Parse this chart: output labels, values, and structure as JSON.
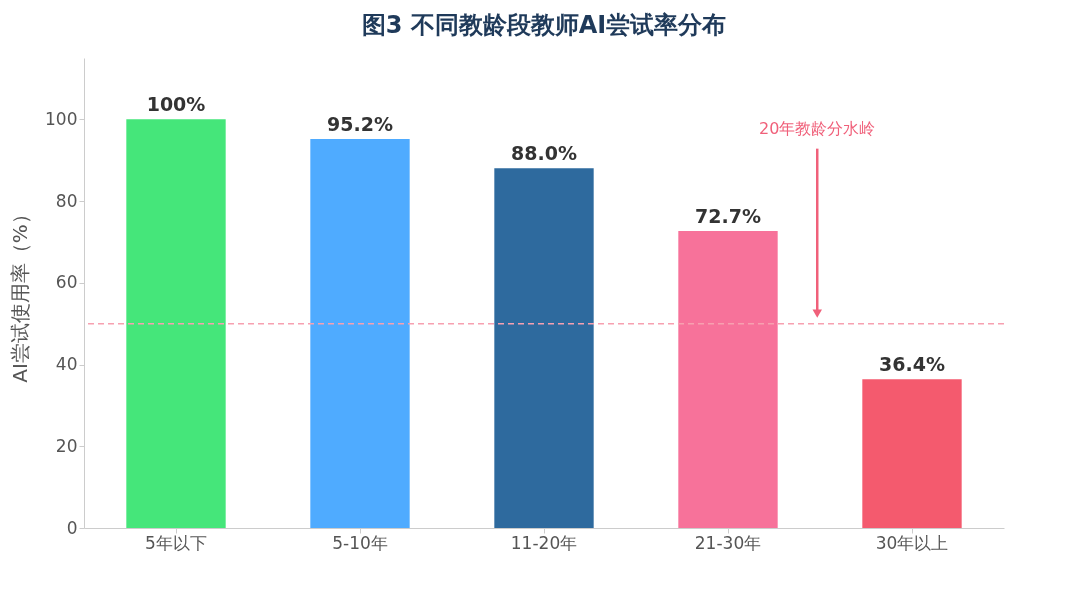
{
  "chart_data": {
    "type": "bar",
    "title": "图3  不同教龄段教师AI尝试率分布",
    "ylabel": "AI尝试使用率（%）",
    "categories": [
      "5年以下",
      "5-10年",
      "11-20年",
      "21-30年",
      "30年以上"
    ],
    "values": [
      100,
      95.2,
      88.0,
      72.7,
      36.4
    ],
    "colors": [
      "#45e67a",
      "#4fabff",
      "#2e6a9e",
      "#f7729a",
      "#f45a6e"
    ],
    "value_labels": [
      "100%",
      "95.2%",
      "88.0%",
      "72.7%",
      "36.4%"
    ],
    "ylim": [
      0,
      115
    ],
    "yticks": [
      0,
      20,
      40,
      60,
      80,
      100
    ],
    "grid": false,
    "annotations": [
      "20年教龄分水岭"
    ],
    "ref_lines": [
      {
        "axis": "y",
        "value": 50,
        "color": "#f7a0b0",
        "line_style": "dashed"
      }
    ]
  }
}
